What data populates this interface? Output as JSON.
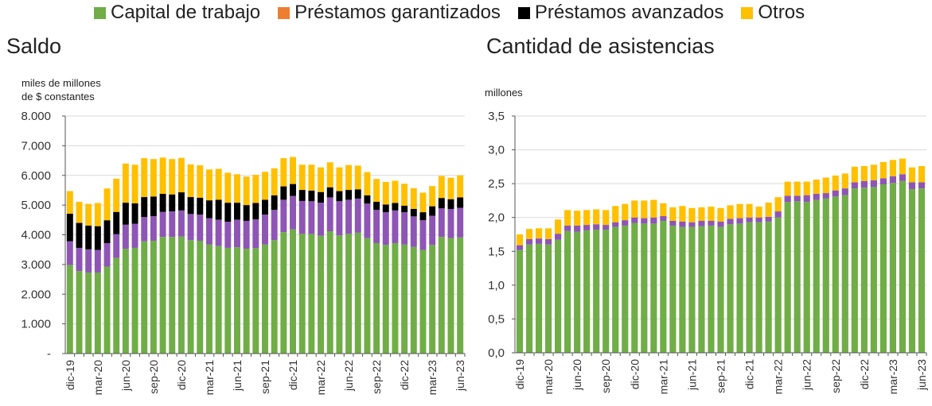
{
  "legend": [
    {
      "label": "Capital de trabajo",
      "color": "#70ad47"
    },
    {
      "label": "Préstamos garantizados",
      "color": "#ed7d31"
    },
    {
      "label": "Préstamos avanzados",
      "color": "#000000"
    },
    {
      "label": "Otros",
      "color": "#ffc000"
    }
  ],
  "chart_data": [
    {
      "type": "bar",
      "stacked": true,
      "title": "Saldo",
      "ylabel": "miles de millones\nde $ constantes",
      "ylabel_line1": "miles de millones",
      "ylabel_line2": "de $ constantes",
      "ylim": [
        0,
        8000
      ],
      "yticks": [
        "-",
        "1.000",
        "2.000",
        "3.000",
        "4.000",
        "5.000",
        "6.000",
        "7.000",
        "8.000"
      ],
      "grid": true,
      "categories": [
        "dic-19",
        "ene-20",
        "feb-20",
        "mar-20",
        "abr-20",
        "may-20",
        "jun-20",
        "jul-20",
        "ago-20",
        "sep-20",
        "oct-20",
        "nov-20",
        "dic-20",
        "ene-21",
        "feb-21",
        "mar-21",
        "abr-21",
        "may-21",
        "jun-21",
        "jul-21",
        "ago-21",
        "sep-21",
        "oct-21",
        "nov-21",
        "dic-21",
        "ene-22",
        "feb-22",
        "mar-22",
        "abr-22",
        "may-22",
        "jun-22",
        "jul-22",
        "ago-22",
        "sep-22",
        "oct-22",
        "nov-22",
        "dic-22",
        "ene-23",
        "feb-23",
        "mar-23",
        "abr-23",
        "may-23",
        "jun-23"
      ],
      "xticklabels": [
        "dic-19",
        "mar-20",
        "jun-20",
        "sep-20",
        "dic-20",
        "mar-21",
        "jun-21",
        "sep-21",
        "dic-21",
        "mar-22",
        "jun-22",
        "sep-22",
        "dic-22",
        "mar-23",
        "jun-23"
      ],
      "series": [
        {
          "name": "Capital de trabajo",
          "color": "#70ad47",
          "values": [
            2980,
            2780,
            2730,
            2730,
            2930,
            3220,
            3530,
            3560,
            3780,
            3800,
            3930,
            3930,
            3940,
            3820,
            3800,
            3670,
            3620,
            3560,
            3580,
            3530,
            3550,
            3670,
            3820,
            4090,
            4180,
            4030,
            4030,
            3970,
            4120,
            3980,
            4030,
            4070,
            3890,
            3720,
            3660,
            3720,
            3670,
            3590,
            3490,
            3660,
            3930,
            3890,
            3910
          ]
        },
        {
          "name": "",
          "color": "#8e55b5",
          "values": [
            800,
            780,
            780,
            760,
            790,
            800,
            810,
            810,
            820,
            830,
            840,
            860,
            880,
            880,
            880,
            890,
            890,
            880,
            930,
            940,
            970,
            1010,
            1020,
            1090,
            1130,
            1110,
            1100,
            1110,
            1140,
            1150,
            1150,
            1150,
            1160,
            1120,
            1100,
            1100,
            1090,
            1030,
            1000,
            980,
            960,
            980,
            1000
          ]
        },
        {
          "name": "Préstamos garantizados",
          "color": "#ed7d31",
          "values": [
            0,
            0,
            0,
            0,
            0,
            0,
            0,
            0,
            0,
            0,
            0,
            0,
            0,
            0,
            0,
            0,
            0,
            0,
            0,
            0,
            0,
            0,
            0,
            0,
            0,
            0,
            0,
            0,
            0,
            0,
            0,
            0,
            0,
            0,
            0,
            0,
            0,
            0,
            0,
            0,
            0,
            0,
            0
          ]
        },
        {
          "name": "Préstamos avanzados",
          "color": "#000000",
          "values": [
            930,
            840,
            800,
            800,
            770,
            750,
            740,
            690,
            670,
            660,
            610,
            570,
            610,
            570,
            570,
            600,
            670,
            640,
            570,
            530,
            550,
            500,
            490,
            450,
            400,
            370,
            360,
            360,
            340,
            340,
            330,
            310,
            280,
            270,
            260,
            250,
            220,
            250,
            270,
            320,
            350,
            330,
            350
          ]
        },
        {
          "name": "Otros",
          "color": "#ffc000",
          "values": [
            760,
            710,
            730,
            780,
            1070,
            1120,
            1320,
            1300,
            1310,
            1260,
            1220,
            1190,
            1160,
            1100,
            1090,
            1040,
            1040,
            1010,
            960,
            960,
            950,
            940,
            910,
            950,
            910,
            850,
            870,
            830,
            840,
            800,
            840,
            800,
            780,
            770,
            760,
            750,
            740,
            700,
            660,
            680,
            740,
            720,
            740
          ]
        }
      ]
    },
    {
      "type": "bar",
      "stacked": true,
      "title": "Cantidad de asistencias",
      "ylabel": "millones",
      "ylim": [
        0,
        3.5
      ],
      "yticks": [
        "0,0",
        "0,5",
        "1,0",
        "1,5",
        "2,0",
        "2,5",
        "3,0",
        "3,5"
      ],
      "grid": true,
      "categories": [
        "dic-19",
        "ene-20",
        "feb-20",
        "mar-20",
        "abr-20",
        "may-20",
        "jun-20",
        "jul-20",
        "ago-20",
        "sep-20",
        "oct-20",
        "nov-20",
        "dic-20",
        "ene-21",
        "feb-21",
        "mar-21",
        "abr-21",
        "may-21",
        "jun-21",
        "jul-21",
        "ago-21",
        "sep-21",
        "oct-21",
        "nov-21",
        "dic-21",
        "ene-22",
        "feb-22",
        "mar-22",
        "abr-22",
        "may-22",
        "jun-22",
        "jul-22",
        "ago-22",
        "sep-22",
        "oct-22",
        "nov-22",
        "dic-22",
        "ene-23",
        "feb-23",
        "mar-23",
        "abr-23",
        "may-23",
        "jun-23"
      ],
      "xticklabels": [
        "dic-19",
        "mar-20",
        "jun-20",
        "sep-20",
        "dic-20",
        "mar-21",
        "jun-21",
        "sep-21",
        "dic-21",
        "mar-22",
        "jun-22",
        "sep-22",
        "dic-22",
        "mar-23",
        "jun-23"
      ],
      "series": [
        {
          "name": "Capital de trabajo",
          "color": "#70ad47",
          "values": [
            1.52,
            1.6,
            1.61,
            1.6,
            1.67,
            1.8,
            1.79,
            1.81,
            1.82,
            1.82,
            1.86,
            1.88,
            1.92,
            1.91,
            1.91,
            1.95,
            1.88,
            1.86,
            1.86,
            1.87,
            1.88,
            1.86,
            1.9,
            1.91,
            1.93,
            1.93,
            1.94,
            2.0,
            2.23,
            2.24,
            2.23,
            2.26,
            2.28,
            2.31,
            2.33,
            2.43,
            2.44,
            2.45,
            2.49,
            2.51,
            2.54,
            2.42,
            2.43
          ]
        },
        {
          "name": "",
          "color": "#8e55b5",
          "values": [
            0.07,
            0.08,
            0.08,
            0.08,
            0.09,
            0.08,
            0.09,
            0.08,
            0.08,
            0.07,
            0.07,
            0.08,
            0.08,
            0.08,
            0.09,
            0.07,
            0.07,
            0.08,
            0.07,
            0.08,
            0.07,
            0.08,
            0.08,
            0.08,
            0.07,
            0.07,
            0.07,
            0.09,
            0.09,
            0.08,
            0.1,
            0.09,
            0.08,
            0.09,
            0.1,
            0.09,
            0.1,
            0.1,
            0.09,
            0.1,
            0.1,
            0.1,
            0.09
          ]
        },
        {
          "name": "Otros",
          "color": "#ffc000",
          "values": [
            0.16,
            0.15,
            0.15,
            0.16,
            0.21,
            0.23,
            0.22,
            0.22,
            0.22,
            0.22,
            0.24,
            0.24,
            0.25,
            0.26,
            0.26,
            0.19,
            0.2,
            0.23,
            0.21,
            0.2,
            0.21,
            0.2,
            0.2,
            0.21,
            0.2,
            0.16,
            0.21,
            0.21,
            0.21,
            0.21,
            0.2,
            0.21,
            0.23,
            0.22,
            0.22,
            0.23,
            0.22,
            0.23,
            0.24,
            0.24,
            0.23,
            0.22,
            0.24
          ]
        }
      ]
    }
  ]
}
